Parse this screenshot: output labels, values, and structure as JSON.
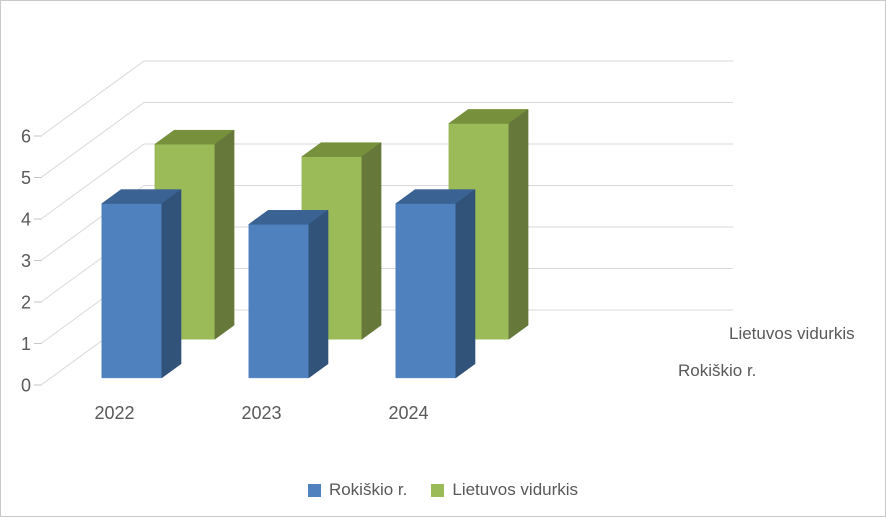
{
  "chart_data": {
    "type": "bar",
    "variant": "3d-column",
    "title": "",
    "categories": [
      "2022",
      "2023",
      "2024"
    ],
    "series": [
      {
        "name": "Rokiškio r.",
        "values": [
          4.2,
          3.7,
          4.2
        ],
        "color_front": "#4E81BD",
        "color_top": "#3A6394",
        "color_side": "#315279"
      },
      {
        "name": "Lietuvos vidurkis",
        "values": [
          4.7,
          4.4,
          5.2
        ],
        "color_front": "#9BBB59",
        "color_top": "#76903C",
        "color_side": "#66783A"
      }
    ],
    "ylim": [
      0,
      6
    ],
    "yticks": [
      0,
      1,
      2,
      3,
      4,
      5,
      6
    ],
    "grid": true,
    "gridline_color": "#D9D9D9",
    "tick_color": "#C6C6C6",
    "text_color": "#595959",
    "legend_position": "bottom",
    "depth_axis_labels": [
      "Rokiškio r.",
      "Lietuvos vidurkis"
    ]
  },
  "legend": {
    "items": [
      {
        "label": "Rokiškio r.",
        "color": "#4E81BD"
      },
      {
        "label": "Lietuvos vidurkis",
        "color": "#9BBB59"
      }
    ]
  }
}
